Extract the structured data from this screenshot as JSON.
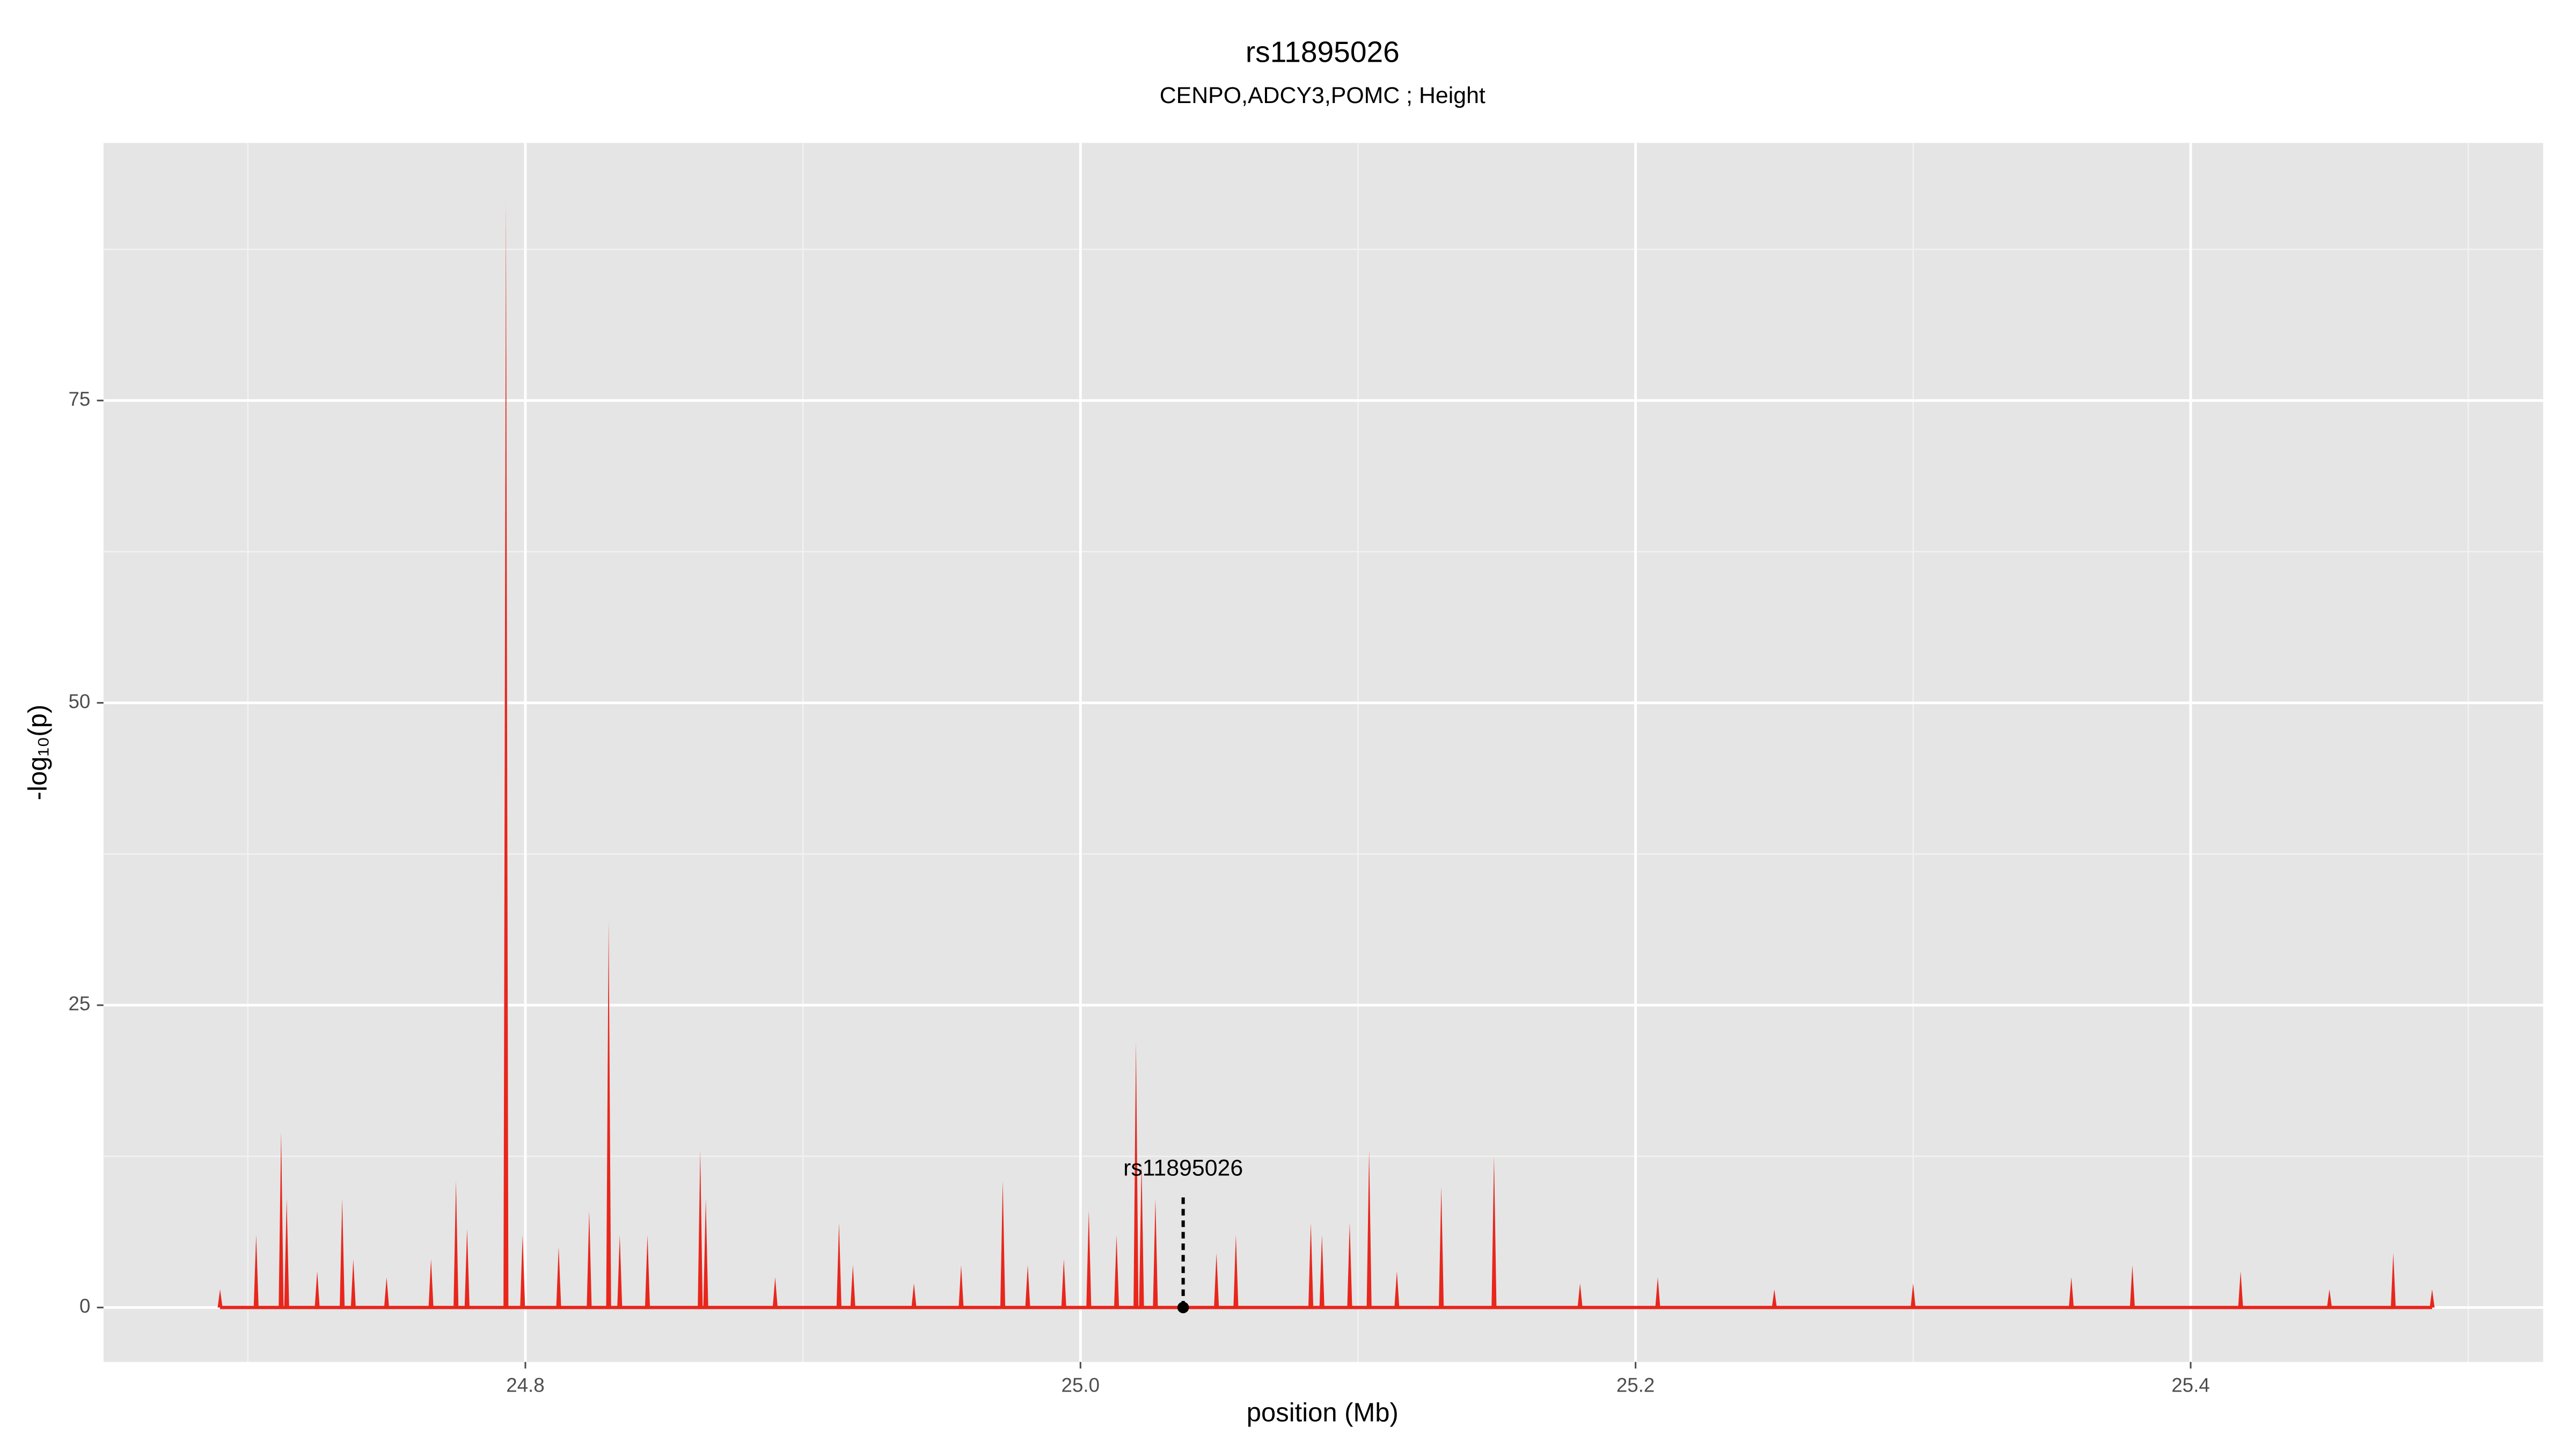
{
  "chart_data": {
    "type": "spike",
    "title": "rs11895026",
    "subtitle": "CENPO,ADCY3,POMC ; Height",
    "x_label": "position (Mb)",
    "y_label": "-log₁₀(p)",
    "xlim": [
      24.648,
      25.527
    ],
    "ylim": [
      -4.5,
      96.3
    ],
    "xticks": [
      24.8,
      {
        "value": 25,
        "label": "25.0"
      },
      25.2,
      25.4
    ],
    "yticks": [
      0,
      25,
      50,
      75
    ],
    "minor_xticks": [
      24.7,
      24.9,
      25.1,
      25.3,
      25.5
    ],
    "minor_yticks": [
      12.5,
      37.5,
      62.5,
      87.5
    ],
    "grid": true,
    "series": [
      {
        "color": "#e8261c",
        "x": [
          24.69,
          24.703,
          24.712,
          24.714,
          24.725,
          24.734,
          24.738,
          24.75,
          24.766,
          24.775,
          24.779,
          24.793,
          24.799,
          24.812,
          24.823,
          24.83,
          24.834,
          24.844,
          24.863,
          24.865,
          24.89,
          24.913,
          24.918,
          24.94,
          24.957,
          24.972,
          24.981,
          24.994,
          25.003,
          25.013,
          25.02,
          25.022,
          25.027,
          25.049,
          25.056,
          25.083,
          25.087,
          25.097,
          25.104,
          25.114,
          25.13,
          25.149,
          25.18,
          25.208,
          25.25,
          25.3,
          25.357,
          25.379,
          25.418,
          25.45,
          25.473,
          25.487
        ],
        "values": [
          1.5,
          6,
          14.5,
          9,
          3,
          9,
          4,
          2.5,
          4,
          10.5,
          6.5,
          91.5,
          6,
          5,
          8,
          32,
          6,
          6,
          13,
          9,
          2.5,
          7,
          3.5,
          2,
          3.5,
          10.5,
          3.5,
          4,
          8,
          6,
          22,
          12,
          9,
          4.5,
          6,
          7,
          6,
          7,
          13,
          3,
          10,
          12.5,
          2,
          2.5,
          1.5,
          2,
          2.5,
          3.5,
          3,
          1.5,
          4.5,
          1.5
        ]
      }
    ],
    "annotation": {
      "text": "rs11895026",
      "x": 25.037,
      "y": 0
    }
  }
}
